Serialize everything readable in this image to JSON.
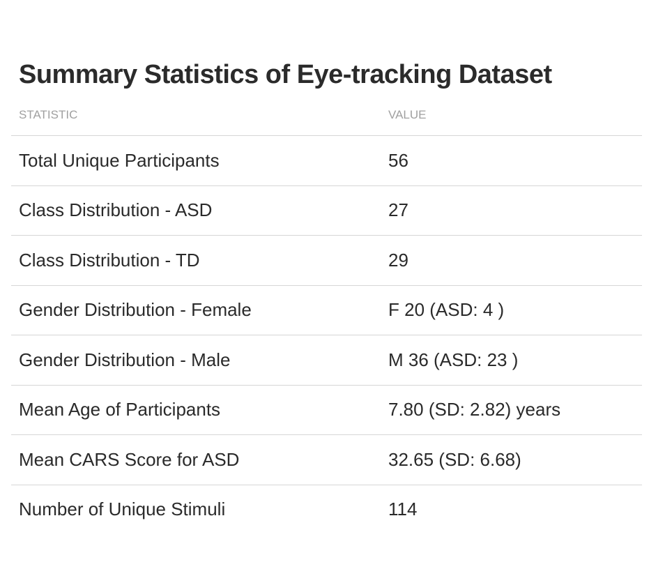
{
  "title": "Summary Statistics of Eye-tracking Dataset",
  "headers": [
    "STATISTIC",
    "VALUE"
  ],
  "rows": [
    {
      "statistic": "Total Unique Participants",
      "value": "56"
    },
    {
      "statistic": "Class Distribution - ASD",
      "value": "27"
    },
    {
      "statistic": "Class Distribution - TD",
      "value": "29"
    },
    {
      "statistic": "Gender Distribution - Female",
      "value": "F 20 (ASD: 4 )"
    },
    {
      "statistic": "Gender Distribution - Male",
      "value": "M 36 (ASD: 23 )"
    },
    {
      "statistic": "Mean Age of Participants",
      "value": "7.80 (SD: 2.82) years"
    },
    {
      "statistic": "Mean CARS Score for ASD",
      "value": "32.65 (SD: 6.68)"
    },
    {
      "statistic": "Number of Unique Stimuli",
      "value": "114"
    }
  ]
}
